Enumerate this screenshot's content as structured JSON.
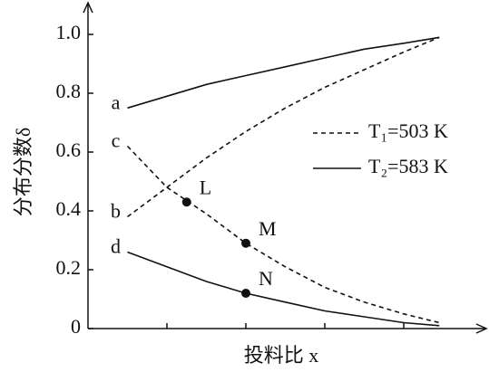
{
  "chart_data": {
    "type": "line",
    "ylabel": "分布分数δ",
    "xlabel": "投料比 x",
    "x": [
      0.5,
      1.0,
      1.5,
      2.0,
      2.5,
      3.0,
      3.5,
      4.0,
      4.45
    ],
    "xlim": [
      0,
      5
    ],
    "xticks": [
      1,
      2,
      3,
      4
    ],
    "ylim": [
      0,
      1.1
    ],
    "yticks": [
      0,
      0.2,
      0.4,
      0.6,
      0.8,
      {
        "value": 1,
        "label": "1.0"
      }
    ],
    "series": [
      {
        "name": "a",
        "dash": false,
        "color": "#111111",
        "values": [
          0.75,
          0.79,
          0.83,
          0.86,
          0.89,
          0.92,
          0.95,
          0.97,
          0.99
        ]
      },
      {
        "name": "b",
        "dash": true,
        "color": "#111111",
        "values": [
          0.38,
          0.48,
          0.58,
          0.67,
          0.75,
          0.82,
          0.88,
          0.94,
          0.99
        ]
      },
      {
        "name": "c",
        "dash": true,
        "color": "#111111",
        "values": [
          0.62,
          0.48,
          0.39,
          0.29,
          0.21,
          0.14,
          0.09,
          0.05,
          0.02
        ]
      },
      {
        "name": "d",
        "dash": false,
        "color": "#111111",
        "values": [
          0.26,
          0.21,
          0.16,
          0.12,
          0.09,
          0.06,
          0.04,
          0.02,
          0.01
        ]
      }
    ],
    "points": [
      {
        "label": "L",
        "x": 1.25,
        "y": 0.43
      },
      {
        "label": "M",
        "x": 2.0,
        "y": 0.29
      },
      {
        "label": "N",
        "x": 2.0,
        "y": 0.12
      }
    ],
    "legend": [
      {
        "label": "T₁=503 K",
        "dash": true
      },
      {
        "label": "T₂=583 K",
        "dash": false
      }
    ]
  }
}
